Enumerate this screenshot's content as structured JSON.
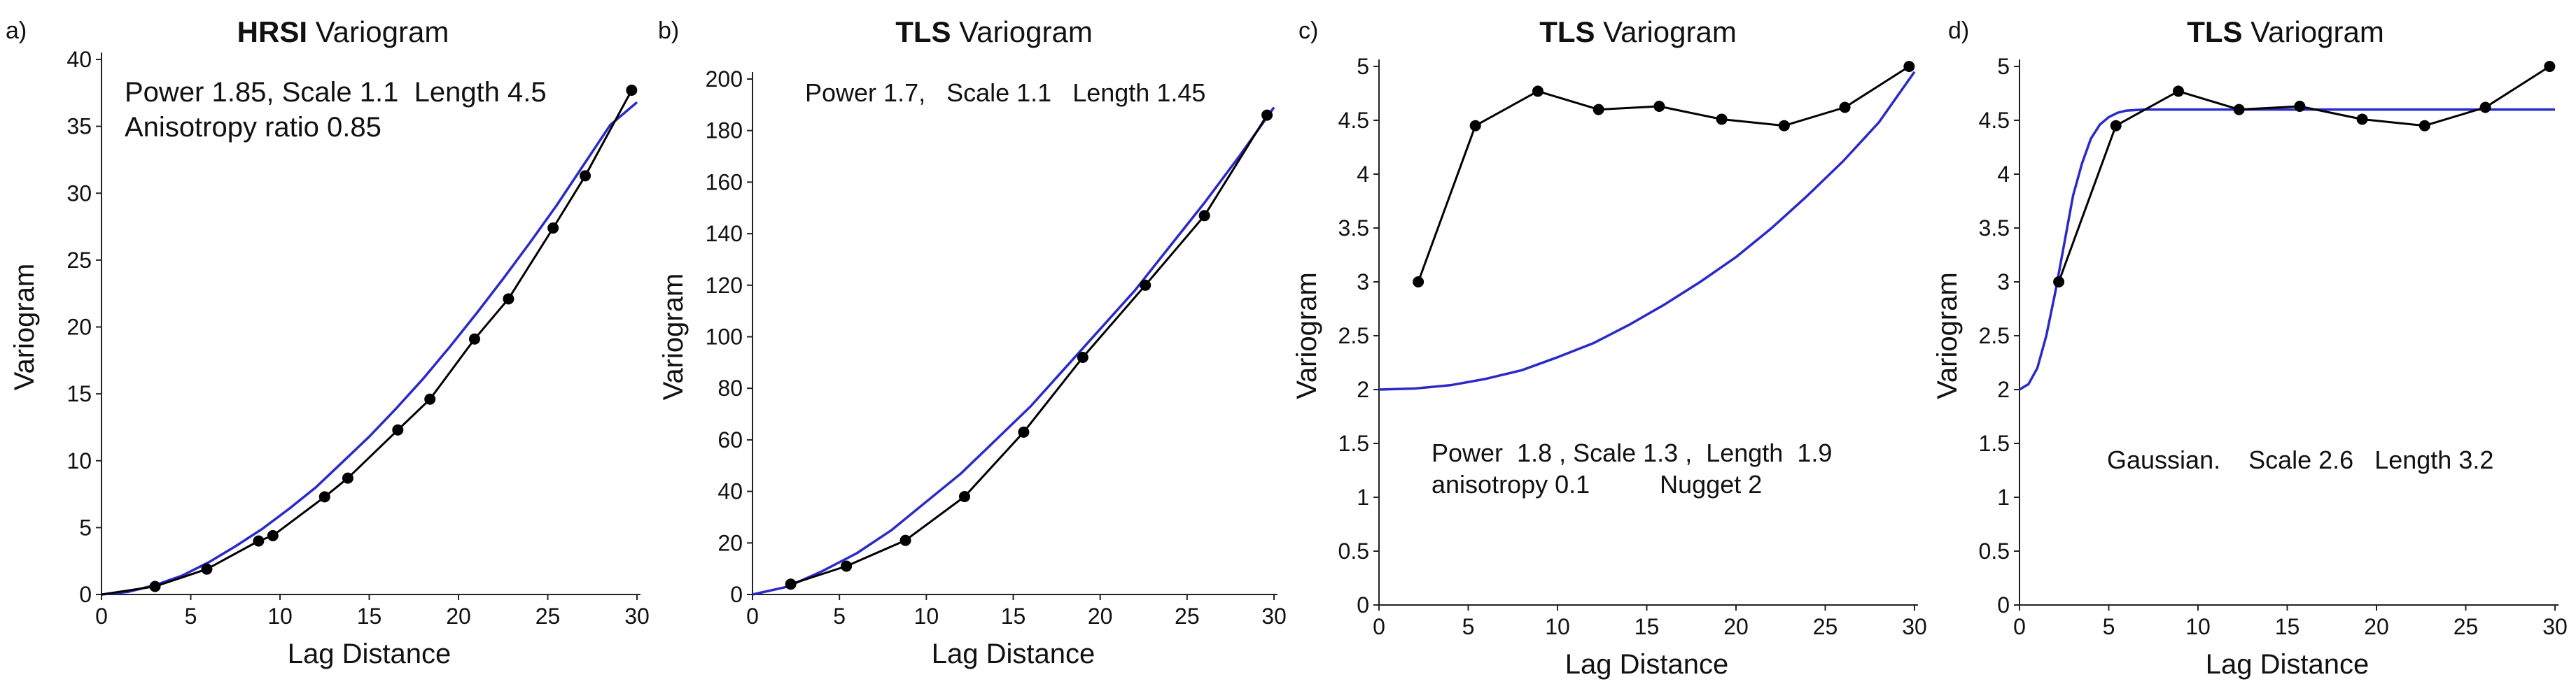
{
  "chart_data": [
    {
      "panel": "a)",
      "type": "line",
      "title_bold": "HRSI",
      "title_rest": " Variogram",
      "xlabel": "Lag Distance",
      "ylabel": "Variogram",
      "xlim": [
        0,
        30
      ],
      "ylim": [
        0,
        40
      ],
      "xticks": [
        0,
        5,
        10,
        15,
        20,
        25,
        30
      ],
      "yticks": [
        0,
        5,
        10,
        15,
        20,
        25,
        30,
        35,
        40
      ],
      "annotations": [
        "Power 1.85, Scale 1.1  Length 4.5",
        "Anisotropy ratio 0.85"
      ],
      "series": [
        {
          "role": "empirical",
          "color": "#000000",
          "x": [
            0,
            3.0,
            5.9,
            8.8,
            9.6,
            12.5,
            13.8,
            16.6,
            18.4,
            20.9,
            22.8,
            25.3,
            27.1,
            29.7
          ],
          "y": [
            0,
            0.6,
            1.9,
            4.0,
            4.4,
            7.3,
            8.7,
            12.3,
            14.6,
            19.1,
            22.1,
            27.4,
            31.3,
            37.7
          ]
        },
        {
          "role": "model",
          "color": "#2a2ac8",
          "x": [
            0,
            1.5,
            3,
            4.5,
            6,
            7.5,
            9,
            10.5,
            12,
            13.5,
            15,
            16.5,
            18,
            19.5,
            21,
            22.5,
            24,
            25.5,
            27,
            28.5,
            30
          ],
          "y": [
            0,
            0.2,
            0.7,
            1.4,
            2.4,
            3.6,
            4.9,
            6.4,
            8.0,
            9.9,
            11.8,
            13.9,
            16.1,
            18.5,
            21.0,
            23.6,
            26.3,
            29.1,
            32.1,
            35.1,
            36.8
          ]
        }
      ]
    },
    {
      "panel": "b)",
      "type": "line",
      "title_bold": "TLS",
      "title_rest": " Variogram",
      "xlabel": "Lag Distance",
      "ylabel": "Variogram",
      "xlim": [
        0,
        30
      ],
      "ylim": [
        0,
        200
      ],
      "xticks": [
        0,
        5,
        10,
        15,
        20,
        25,
        30
      ],
      "yticks": [
        0,
        20,
        40,
        60,
        80,
        100,
        120,
        140,
        160,
        180,
        200
      ],
      "annotations": [
        "Power 1.7,   Scale 1.1   Length 1.45"
      ],
      "series": [
        {
          "role": "empirical",
          "color": "#000000",
          "x": [
            2.2,
            5.4,
            8.8,
            12.2,
            15.6,
            19.0,
            22.6,
            26.0,
            29.6
          ],
          "y": [
            4,
            11,
            21,
            38,
            63,
            92,
            120,
            147,
            186
          ]
        },
        {
          "role": "model",
          "color": "#2a2ac8",
          "x": [
            0,
            2,
            4,
            6,
            8,
            10,
            12,
            14,
            16,
            18,
            20,
            22,
            24,
            26,
            28,
            30
          ],
          "y": [
            0,
            3,
            9,
            16,
            25,
            36,
            47,
            60,
            73,
            88,
            103,
            118,
            135,
            152,
            170,
            189
          ]
        }
      ]
    },
    {
      "panel": "c)",
      "type": "line",
      "title_bold": "TLS",
      "title_rest": " Variogram",
      "xlabel": "Lag Distance",
      "ylabel": "Variogram",
      "xlim": [
        0,
        30
      ],
      "ylim": [
        0,
        5
      ],
      "xticks": [
        0,
        5,
        10,
        15,
        20,
        25,
        30
      ],
      "yticks": [
        0,
        0.5,
        1,
        1.5,
        2,
        2.5,
        3,
        3.5,
        4,
        4.5,
        5
      ],
      "annotations": [
        "Power  1.8 , Scale 1.3 ,  Length  1.9",
        "anisotropy 0.1          Nugget 2"
      ],
      "series": [
        {
          "role": "empirical",
          "color": "#000000",
          "x": [
            2.2,
            5.4,
            8.9,
            12.3,
            15.7,
            19.2,
            22.7,
            26.1,
            29.7
          ],
          "y": [
            3.0,
            4.45,
            4.77,
            4.6,
            4.63,
            4.51,
            4.45,
            4.62,
            5.0
          ]
        },
        {
          "role": "model",
          "color": "#2a2ac8",
          "x": [
            0,
            2,
            4,
            6,
            8,
            10,
            12,
            14,
            16,
            18,
            20,
            22,
            24,
            26,
            28,
            30
          ],
          "y": [
            2.0,
            2.01,
            2.04,
            2.1,
            2.18,
            2.3,
            2.43,
            2.6,
            2.79,
            3.0,
            3.23,
            3.5,
            3.8,
            4.12,
            4.48,
            4.95
          ]
        }
      ]
    },
    {
      "panel": "d)",
      "type": "line",
      "title_bold": "TLS",
      "title_rest": " Variogram",
      "xlabel": "Lag Distance",
      "ylabel": "Variogram",
      "xlim": [
        0,
        30
      ],
      "ylim": [
        0,
        5
      ],
      "xticks": [
        0,
        5,
        10,
        15,
        20,
        25,
        30
      ],
      "yticks": [
        0,
        0.5,
        1,
        1.5,
        2,
        2.5,
        3,
        3.5,
        4,
        4.5,
        5
      ],
      "annotations": [
        "Gaussian.    Scale 2.6   Length 3.2"
      ],
      "series": [
        {
          "role": "empirical",
          "color": "#000000",
          "x": [
            2.2,
            5.4,
            8.9,
            12.3,
            15.7,
            19.2,
            22.7,
            26.1,
            29.7
          ],
          "y": [
            3.0,
            4.45,
            4.77,
            4.6,
            4.63,
            4.51,
            4.45,
            4.62,
            5.0
          ]
        },
        {
          "role": "model",
          "color": "#2a2ac8",
          "x": [
            0,
            0.5,
            1,
            1.5,
            2,
            2.5,
            3,
            3.5,
            4,
            4.5,
            5,
            5.5,
            6,
            7,
            8,
            10,
            15,
            20,
            25,
            30
          ],
          "y": [
            2.0,
            2.05,
            2.2,
            2.5,
            2.9,
            3.35,
            3.8,
            4.1,
            4.33,
            4.46,
            4.53,
            4.57,
            4.59,
            4.6,
            4.6,
            4.6,
            4.6,
            4.6,
            4.6,
            4.6
          ]
        }
      ]
    }
  ]
}
